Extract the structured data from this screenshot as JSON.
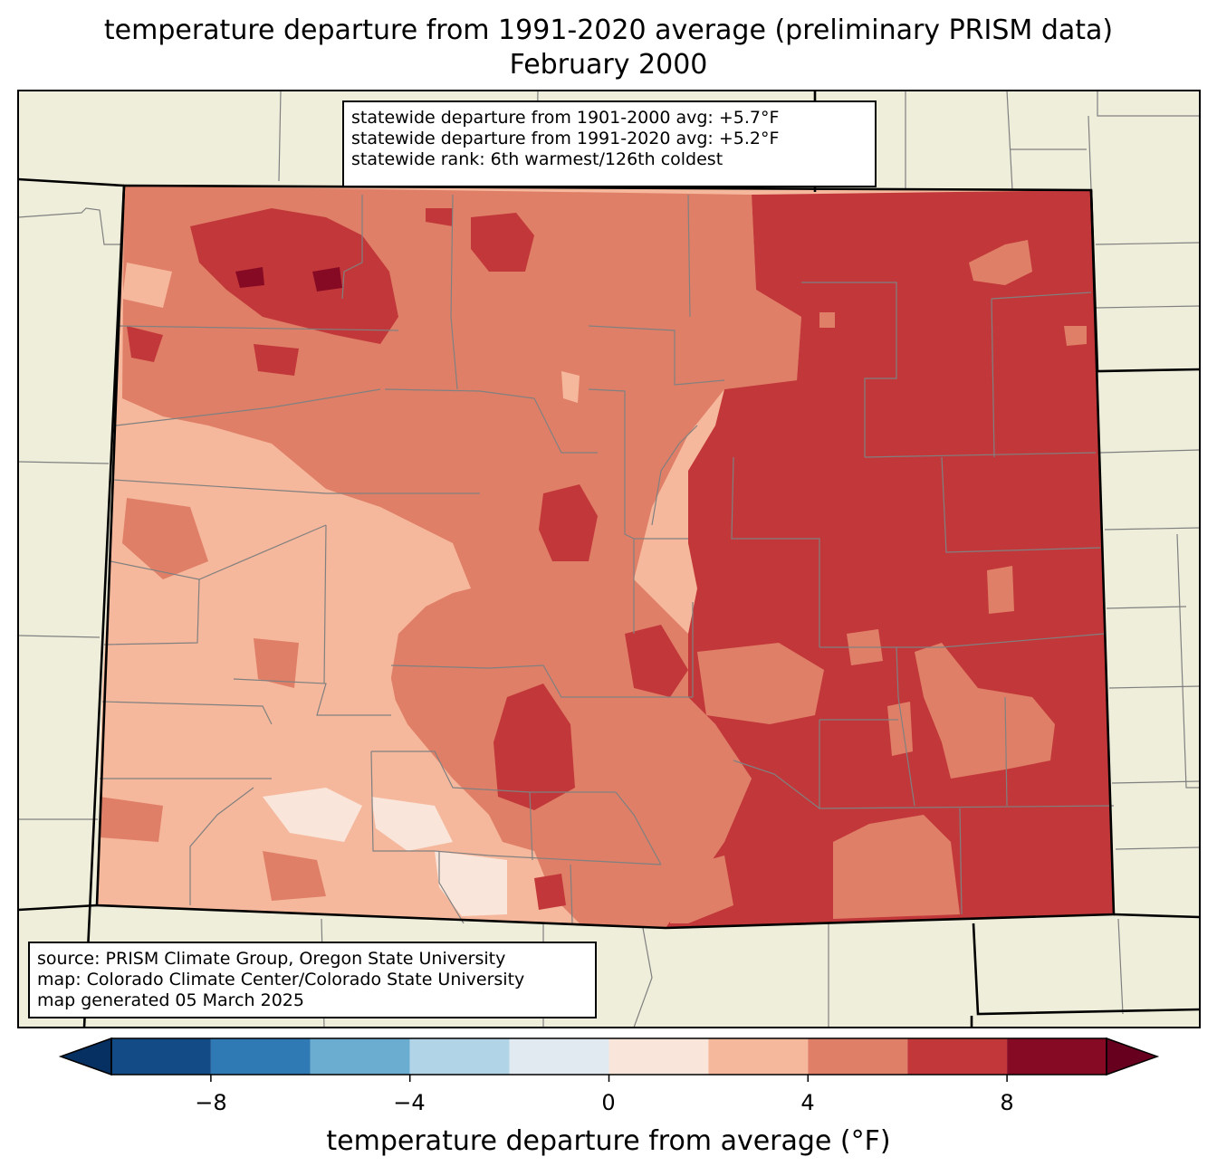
{
  "title": {
    "line1": "temperature departure from 1991-2020 average (preliminary PRISM data)",
    "line2": "February 2000"
  },
  "stats": {
    "line1": "statewide departure from 1901-2000 avg: +5.7°F",
    "line2": "statewide departure from 1991-2020 avg: +5.2°F",
    "line3": "statewide rank: 6th warmest/126th coldest"
  },
  "source": {
    "line1": "source: PRISM Climate Group, Oregon State University",
    "line2": "map: Colorado Climate Center/Colorado State University",
    "line3": "map generated 05 March 2025"
  },
  "colorbar": {
    "label": "temperature departure from average (°F)",
    "ticks": [
      "−8",
      "−4",
      "0",
      "4",
      "8"
    ],
    "tick_values": [
      -8,
      -4,
      0,
      4,
      8
    ],
    "range": [
      -10,
      10
    ],
    "bins": [
      {
        "from": -10,
        "to": -8,
        "color": "#134b87"
      },
      {
        "from": -8,
        "to": -6,
        "color": "#2f79b5"
      },
      {
        "from": -6,
        "to": -4,
        "color": "#6bacd1"
      },
      {
        "from": -4,
        "to": -2,
        "color": "#b1d5e7"
      },
      {
        "from": -2,
        "to": 0,
        "color": "#e1eaf1"
      },
      {
        "from": 0,
        "to": 2,
        "color": "#f9e5da"
      },
      {
        "from": 2,
        "to": 4,
        "color": "#f6b89c"
      },
      {
        "from": 4,
        "to": 6,
        "color": "#e07f67"
      },
      {
        "from": 6,
        "to": 8,
        "color": "#c2383a"
      },
      {
        "from": 8,
        "to": 10,
        "color": "#870a24"
      }
    ],
    "under_color": "#053061",
    "over_color": "#67001f"
  },
  "colors": {
    "land": "#efeedb",
    "county_lines": "#808080",
    "state_lines": "#000000"
  }
}
